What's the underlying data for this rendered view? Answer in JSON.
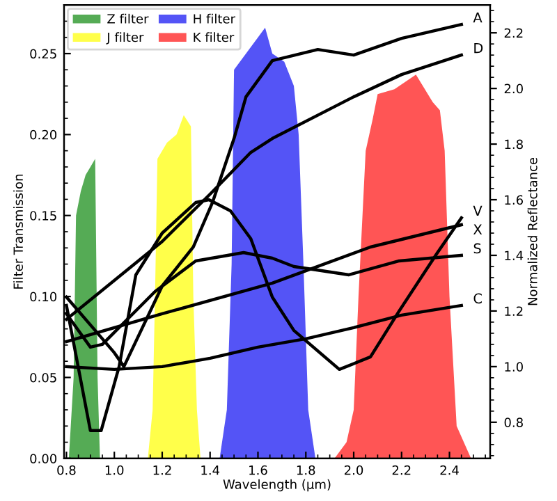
{
  "chart_data": {
    "type": "area",
    "xlabel": "Wavelength (μm)",
    "ylabel": "Filter Transmission",
    "y2label": "Normalized Reflectance",
    "xlim": [
      0.79,
      2.57
    ],
    "xticks": [
      0.8,
      {
        "value": 1,
        "label": "1.0"
      },
      1.2,
      1.4,
      1.6,
      1.8,
      {
        "value": 2,
        "label": "2.0"
      },
      2.2,
      2.4
    ],
    "ylim": [
      0,
      0.28
    ],
    "yticks": [
      {
        "value": 0,
        "label": "0.00"
      },
      {
        "value": 0.05,
        "label": "0.05"
      },
      {
        "value": 0.1,
        "label": "0.10"
      },
      {
        "value": 0.15,
        "label": "0.15"
      },
      {
        "value": 0.2,
        "label": "0.20"
      },
      {
        "value": 0.25,
        "label": "0.25"
      }
    ],
    "y2lim": [
      0.67,
      2.3
    ],
    "y2ticks": [
      0.8,
      {
        "value": 1,
        "label": "1.0"
      },
      1.2,
      1.4,
      1.6,
      1.8,
      {
        "value": 2,
        "label": "2.0"
      },
      2.2
    ],
    "legend": "top left",
    "grid": false,
    "series": [
      {
        "name": "Z filter",
        "color": "#4ca64c",
        "x": [
          0.81,
          0.83,
          0.84,
          0.86,
          0.88,
          0.9,
          0.92,
          0.93,
          0.94
        ],
        "values": [
          0,
          0.05,
          0.15,
          0.165,
          0.175,
          0.18,
          0.185,
          0.05,
          0
        ]
      },
      {
        "name": "J filter",
        "color": "#ffff40",
        "x": [
          1.14,
          1.16,
          1.17,
          1.18,
          1.22,
          1.26,
          1.29,
          1.32,
          1.33,
          1.345,
          1.36
        ],
        "values": [
          0,
          0.03,
          0.1,
          0.185,
          0.195,
          0.2,
          0.212,
          0.205,
          0.1,
          0.03,
          0
        ]
      },
      {
        "name": "H filter",
        "color": "#4b4bf5",
        "x": [
          1.44,
          1.47,
          1.49,
          1.5,
          1.55,
          1.6,
          1.63,
          1.66,
          1.71,
          1.75,
          1.77,
          1.79,
          1.81,
          1.84
        ],
        "values": [
          0,
          0.03,
          0.12,
          0.24,
          0.25,
          0.26,
          0.266,
          0.25,
          0.245,
          0.23,
          0.2,
          0.12,
          0.03,
          0
        ]
      },
      {
        "name": "K filter",
        "color": "#ff4c4c",
        "x": [
          1.92,
          1.97,
          2.0,
          2.02,
          2.05,
          2.08,
          2.1,
          2.17,
          2.26,
          2.33,
          2.36,
          2.38,
          2.4,
          2.43,
          2.49
        ],
        "values": [
          0,
          0.01,
          0.03,
          0.1,
          0.19,
          0.21,
          0.225,
          0.228,
          0.237,
          0.22,
          0.215,
          0.19,
          0.1,
          0.02,
          0
        ]
      },
      {
        "name": "A",
        "type": "line",
        "axis": "y2",
        "color": "#000000",
        "x": [
          0.8,
          0.93,
          1.0,
          1.04,
          1.2,
          1.33,
          1.41,
          1.5,
          1.55,
          1.66,
          1.85,
          2.0,
          2.2,
          2.45
        ],
        "values": [
          1.25,
          1.12,
          1.05,
          1.0,
          1.29,
          1.43,
          1.59,
          1.82,
          1.97,
          2.1,
          2.14,
          2.12,
          2.18,
          2.23
        ]
      },
      {
        "name": "D",
        "type": "line",
        "axis": "y2",
        "color": "#000000",
        "x": [
          0.8,
          1.0,
          1.2,
          1.4,
          1.57,
          1.66,
          2.0,
          2.2,
          2.45
        ],
        "values": [
          1.17,
          1.31,
          1.45,
          1.62,
          1.77,
          1.82,
          1.97,
          2.05,
          2.12
        ]
      },
      {
        "name": "V",
        "type": "line",
        "axis": "y2",
        "color": "#000000",
        "x": [
          0.8,
          0.9,
          0.945,
          1.02,
          1.09,
          1.2,
          1.34,
          1.395,
          1.485,
          1.57,
          1.66,
          1.75,
          1.94,
          2.07,
          2.19,
          2.35,
          2.45
        ],
        "values": [
          1.22,
          0.77,
          0.77,
          1.0,
          1.33,
          1.48,
          1.59,
          1.6,
          1.56,
          1.46,
          1.25,
          1.13,
          0.99,
          1.035,
          1.2,
          1.41,
          1.535
        ]
      },
      {
        "name": "X",
        "type": "line",
        "axis": "y2",
        "color": "#000000",
        "x": [
          0.8,
          1.2,
          1.66,
          2.07,
          2.45
        ],
        "values": [
          1.09,
          1.19,
          1.3,
          1.43,
          1.51
        ]
      },
      {
        "name": "S",
        "type": "line",
        "axis": "y2",
        "color": "#000000",
        "x": [
          0.8,
          0.9,
          0.95,
          1.17,
          1.34,
          1.54,
          1.66,
          1.75,
          1.98,
          2.19,
          2.45
        ],
        "values": [
          1.19,
          1.07,
          1.08,
          1.27,
          1.38,
          1.41,
          1.39,
          1.36,
          1.33,
          1.38,
          1.4
        ]
      },
      {
        "name": "C",
        "type": "line",
        "axis": "y2",
        "color": "#000000",
        "x": [
          0.8,
          1.0,
          1.2,
          1.4,
          1.6,
          1.8,
          2.0,
          2.2,
          2.45
        ],
        "values": [
          1.0,
          0.99,
          1.0,
          1.03,
          1.07,
          1.1,
          1.14,
          1.185,
          1.22
        ]
      }
    ]
  }
}
